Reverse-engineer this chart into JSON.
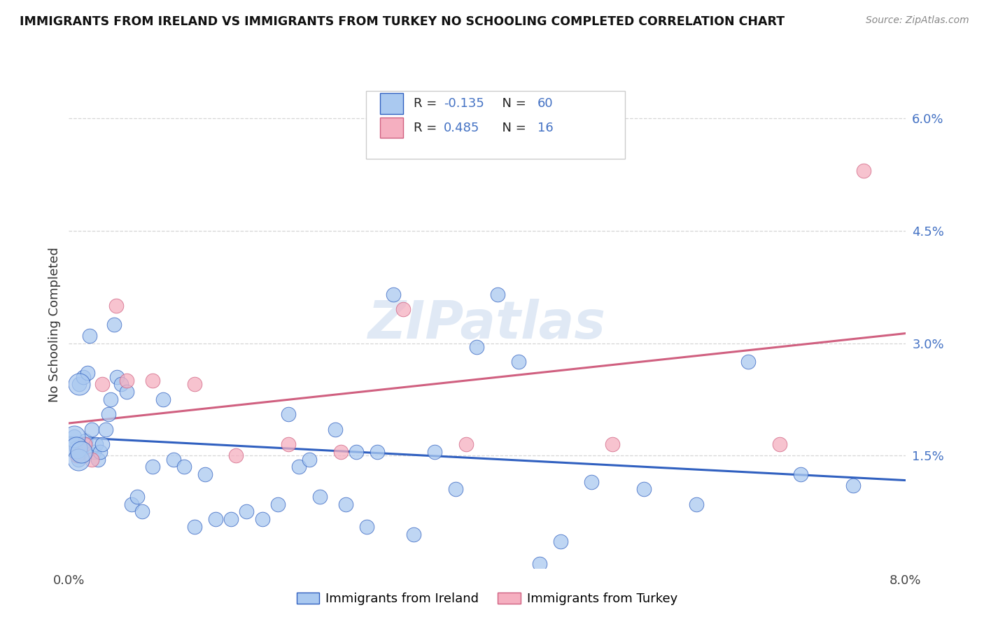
{
  "title": "IMMIGRANTS FROM IRELAND VS IMMIGRANTS FROM TURKEY NO SCHOOLING COMPLETED CORRELATION CHART",
  "source": "Source: ZipAtlas.com",
  "ylabel": "No Schooling Completed",
  "watermark": "ZIPatlas",
  "legend_ireland": "Immigrants from Ireland",
  "legend_turkey": "Immigrants from Turkey",
  "R_ireland": "-0.135",
  "N_ireland": "60",
  "R_turkey": "0.485",
  "N_turkey": "16",
  "color_ireland": "#aac9f0",
  "color_turkey": "#f5afc0",
  "line_ireland": "#3060c0",
  "line_turkey": "#d06080",
  "xlim": [
    0.0,
    8.0
  ],
  "ylim": [
    0.0,
    6.5
  ],
  "ireland_x": [
    0.05,
    0.07,
    0.09,
    0.1,
    0.12,
    0.14,
    0.16,
    0.18,
    0.2,
    0.22,
    0.24,
    0.26,
    0.28,
    0.3,
    0.32,
    0.35,
    0.38,
    0.4,
    0.43,
    0.46,
    0.5,
    0.55,
    0.6,
    0.65,
    0.7,
    0.8,
    0.9,
    1.0,
    1.1,
    1.2,
    1.3,
    1.4,
    1.55,
    1.7,
    1.85,
    2.0,
    2.1,
    2.2,
    2.3,
    2.4,
    2.55,
    2.65,
    2.75,
    2.85,
    2.95,
    3.1,
    3.3,
    3.5,
    3.7,
    3.9,
    4.1,
    4.3,
    4.5,
    4.7,
    5.0,
    5.5,
    6.0,
    6.5,
    7.0,
    7.5
  ],
  "ireland_y": [
    1.75,
    1.6,
    1.45,
    2.45,
    1.55,
    2.55,
    1.7,
    2.6,
    3.1,
    1.85,
    1.55,
    1.65,
    1.45,
    1.55,
    1.65,
    1.85,
    2.05,
    2.25,
    3.25,
    2.55,
    2.45,
    2.35,
    0.85,
    0.95,
    0.75,
    1.35,
    2.25,
    1.45,
    1.35,
    0.55,
    1.25,
    0.65,
    0.65,
    0.75,
    0.65,
    0.85,
    2.05,
    1.35,
    1.45,
    0.95,
    1.85,
    0.85,
    1.55,
    0.55,
    1.55,
    3.65,
    0.45,
    1.55,
    1.05,
    2.95,
    3.65,
    2.75,
    0.05,
    0.35,
    1.15,
    1.05,
    0.85,
    2.75,
    1.25,
    1.1
  ],
  "turkey_x": [
    0.08,
    0.15,
    0.22,
    0.32,
    0.45,
    0.55,
    0.8,
    1.2,
    1.6,
    2.1,
    2.6,
    3.2,
    3.8,
    5.2,
    6.8,
    7.6
  ],
  "turkey_y": [
    1.5,
    1.65,
    1.45,
    2.45,
    3.5,
    2.5,
    2.5,
    2.45,
    1.5,
    1.65,
    1.55,
    3.45,
    1.65,
    1.65,
    1.65,
    5.3
  ],
  "grid_color": "#cccccc",
  "bg_color": "#ffffff",
  "yticks": [
    1.5,
    3.0,
    4.5,
    6.0
  ],
  "ytick_labels": [
    "1.5%",
    "3.0%",
    "4.5%",
    "6.0%"
  ]
}
